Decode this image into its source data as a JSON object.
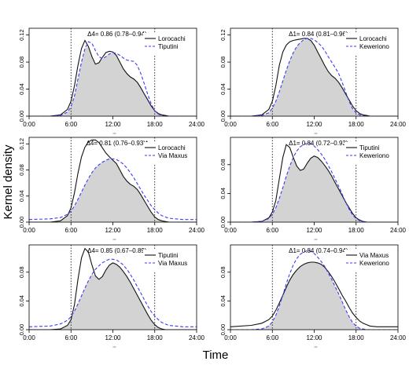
{
  "figure": {
    "ylabel": "Kernel density",
    "xlabel": "Time"
  },
  "chart_data": [
    {
      "type": "area",
      "annotation": "Δ4= 0.86 (0.78–0.94)",
      "legend_position": "top-right",
      "x_ticks": [
        "0:00",
        "6:00",
        "12:00",
        "18:00",
        "24:00"
      ],
      "y_ticks": [
        "0.00",
        "0.04",
        "0.08",
        "0.12"
      ],
      "xlim": [
        0,
        24
      ],
      "ylim": [
        0,
        0.13
      ],
      "dotted_vlines": [
        6,
        18
      ],
      "series": [
        {
          "name": "Lorocachi",
          "style": "solid",
          "x": [
            0,
            3,
            4.5,
            5.5,
            6,
            6.5,
            7,
            7.5,
            8,
            8.5,
            9,
            9.5,
            10,
            10.5,
            11,
            11.5,
            12,
            12.5,
            13,
            13.5,
            14,
            14.5,
            15,
            15.5,
            16,
            16.5,
            17,
            17.5,
            18,
            18.5,
            19,
            19.5,
            20,
            21,
            22,
            24
          ],
          "y": [
            0,
            0,
            0.002,
            0.01,
            0.022,
            0.045,
            0.075,
            0.1,
            0.112,
            0.103,
            0.088,
            0.077,
            0.079,
            0.087,
            0.094,
            0.096,
            0.095,
            0.09,
            0.08,
            0.07,
            0.063,
            0.058,
            0.055,
            0.05,
            0.042,
            0.033,
            0.024,
            0.015,
            0.008,
            0.004,
            0.002,
            0.001,
            0,
            0,
            0,
            0
          ]
        },
        {
          "name": "Tiputini",
          "style": "dashed",
          "x": [
            0,
            3,
            4.5,
            5.5,
            6,
            6.5,
            7,
            7.5,
            8,
            8.5,
            9,
            9.5,
            10,
            10.5,
            11,
            11.5,
            12,
            12.5,
            13,
            13.5,
            14,
            14.5,
            15,
            15.5,
            16,
            16.5,
            17,
            17.5,
            18,
            18.5,
            19,
            19.5,
            20,
            21,
            22,
            24
          ],
          "y": [
            0,
            0,
            0.001,
            0.006,
            0.014,
            0.03,
            0.055,
            0.08,
            0.1,
            0.11,
            0.108,
            0.097,
            0.088,
            0.085,
            0.088,
            0.092,
            0.094,
            0.093,
            0.09,
            0.086,
            0.083,
            0.082,
            0.081,
            0.075,
            0.063,
            0.048,
            0.032,
            0.018,
            0.008,
            0.003,
            0.001,
            0,
            0,
            0,
            0,
            0
          ]
        }
      ]
    },
    {
      "type": "area",
      "annotation": "Δ1= 0.84 (0.81–0.96)",
      "legend_position": "top-right",
      "x_ticks": [
        "0:00",
        "6:00",
        "12:00",
        "18:00",
        "24:00"
      ],
      "y_ticks": [
        "0.00",
        "0.04",
        "0.08",
        "0.12"
      ],
      "xlim": [
        0,
        24
      ],
      "ylim": [
        0,
        0.13
      ],
      "dotted_vlines": [
        6,
        18
      ],
      "series": [
        {
          "name": "Lorocachi",
          "style": "solid",
          "x": [
            0,
            3,
            4.5,
            5.5,
            6,
            6.5,
            7,
            7.5,
            8,
            8.5,
            9,
            9.5,
            10,
            10.5,
            11,
            11.5,
            12,
            12.5,
            13,
            13.5,
            14,
            14.5,
            15,
            15.5,
            16,
            16.5,
            17,
            17.5,
            18,
            18.5,
            19,
            19.5,
            20,
            21,
            22,
            24
          ],
          "y": [
            0,
            0,
            0.002,
            0.01,
            0.022,
            0.045,
            0.075,
            0.095,
            0.105,
            0.11,
            0.112,
            0.113,
            0.114,
            0.115,
            0.115,
            0.112,
            0.105,
            0.095,
            0.085,
            0.075,
            0.066,
            0.06,
            0.056,
            0.05,
            0.042,
            0.033,
            0.024,
            0.015,
            0.008,
            0.004,
            0.002,
            0.001,
            0,
            0,
            0,
            0
          ]
        },
        {
          "name": "Keweriono",
          "style": "dashed",
          "x": [
            0,
            3,
            4.5,
            5.5,
            6,
            6.5,
            7,
            7.5,
            8,
            8.5,
            9,
            9.5,
            10,
            10.5,
            11,
            11.5,
            12,
            12.5,
            13,
            13.5,
            14,
            14.5,
            15,
            15.5,
            16,
            16.5,
            17,
            17.5,
            18,
            18.5,
            19,
            19.5,
            20,
            21,
            22,
            24
          ],
          "y": [
            0,
            0,
            0.001,
            0.005,
            0.012,
            0.022,
            0.036,
            0.052,
            0.068,
            0.082,
            0.094,
            0.103,
            0.109,
            0.113,
            0.115,
            0.115,
            0.113,
            0.109,
            0.104,
            0.097,
            0.088,
            0.08,
            0.072,
            0.063,
            0.05,
            0.036,
            0.022,
            0.011,
            0.005,
            0.002,
            0.001,
            0,
            0,
            0,
            0,
            0
          ]
        }
      ]
    },
    {
      "type": "area",
      "annotation": "Δ4= 0.81 (0.76–0.93)*",
      "legend_position": "top-right",
      "x_ticks": [
        "0:00",
        "6:00",
        "12:00",
        "18:00",
        "24:00"
      ],
      "y_ticks": [
        "0.00",
        "0.04",
        "0.08",
        "0.12"
      ],
      "xlim": [
        0,
        24
      ],
      "ylim": [
        0,
        0.13
      ],
      "dotted_vlines": [
        6,
        18
      ],
      "series": [
        {
          "name": "Lorocachi",
          "style": "solid",
          "x": [
            0,
            3,
            4.5,
            5.5,
            6,
            6.5,
            7,
            7.5,
            8,
            8.5,
            9,
            9.5,
            10,
            10.5,
            11,
            11.5,
            12,
            12.5,
            13,
            13.5,
            14,
            14.5,
            15,
            15.5,
            16,
            16.5,
            17,
            17.5,
            18,
            18.5,
            19,
            19.5,
            20,
            21,
            22,
            24
          ],
          "y": [
            0,
            0,
            0.002,
            0.01,
            0.022,
            0.045,
            0.075,
            0.1,
            0.115,
            0.123,
            0.126,
            0.126,
            0.122,
            0.114,
            0.106,
            0.1,
            0.095,
            0.09,
            0.08,
            0.07,
            0.063,
            0.058,
            0.055,
            0.05,
            0.042,
            0.033,
            0.024,
            0.015,
            0.008,
            0.004,
            0.002,
            0.001,
            0,
            0,
            0,
            0
          ]
        },
        {
          "name": "Via Maxus",
          "style": "dashed",
          "x": [
            0,
            3,
            4.5,
            5.5,
            6,
            6.5,
            7,
            7.5,
            8,
            8.5,
            9,
            9.5,
            10,
            10.5,
            11,
            11.5,
            12,
            12.5,
            13,
            13.5,
            14,
            14.5,
            15,
            15.5,
            16,
            16.5,
            17,
            17.5,
            18,
            18.5,
            19,
            19.5,
            20,
            21,
            22,
            24
          ],
          "y": [
            0.004,
            0.005,
            0.007,
            0.012,
            0.017,
            0.025,
            0.035,
            0.046,
            0.057,
            0.067,
            0.076,
            0.083,
            0.088,
            0.092,
            0.095,
            0.097,
            0.097,
            0.096,
            0.093,
            0.089,
            0.083,
            0.076,
            0.068,
            0.059,
            0.05,
            0.041,
            0.033,
            0.025,
            0.019,
            0.014,
            0.01,
            0.008,
            0.006,
            0.005,
            0.004,
            0.004
          ]
        }
      ]
    },
    {
      "type": "area",
      "annotation": "Δ1= 0.84 (0.72–0.93)",
      "legend_position": "top-right",
      "x_ticks": [
        "0:00",
        "6:00",
        "12:00",
        "18:00",
        "24:00"
      ],
      "y_ticks": [
        "0.00",
        "0.04",
        "0.08"
      ],
      "xlim": [
        0,
        24
      ],
      "ylim": [
        0,
        0.118
      ],
      "dotted_vlines": [
        6,
        18
      ],
      "series": [
        {
          "name": "Tiputini",
          "style": "solid",
          "x": [
            0,
            3,
            4.5,
            5.5,
            6,
            6.5,
            7,
            7.5,
            8,
            8.5,
            9,
            9.5,
            10,
            10.5,
            11,
            11.5,
            12,
            12.5,
            13,
            13.5,
            14,
            14.5,
            15,
            15.5,
            16,
            16.5,
            17,
            17.5,
            18,
            18.5,
            19,
            19.5,
            20,
            21,
            22,
            24
          ],
          "y": [
            0,
            0,
            0.001,
            0.006,
            0.014,
            0.03,
            0.06,
            0.09,
            0.108,
            0.104,
            0.09,
            0.078,
            0.072,
            0.074,
            0.082,
            0.089,
            0.092,
            0.09,
            0.085,
            0.079,
            0.072,
            0.064,
            0.055,
            0.046,
            0.037,
            0.028,
            0.02,
            0.012,
            0.006,
            0.003,
            0.001,
            0,
            0,
            0,
            0,
            0
          ]
        },
        {
          "name": "Keweriono",
          "style": "dashed",
          "x": [
            0,
            3,
            4.5,
            5.5,
            6,
            6.5,
            7,
            7.5,
            8,
            8.5,
            9,
            9.5,
            10,
            10.5,
            11,
            11.5,
            12,
            12.5,
            13,
            13.5,
            14,
            14.5,
            15,
            15.5,
            16,
            16.5,
            17,
            17.5,
            18,
            18.5,
            19,
            19.5,
            20,
            21,
            22,
            24
          ],
          "y": [
            0,
            0,
            0.001,
            0.005,
            0.011,
            0.02,
            0.033,
            0.048,
            0.064,
            0.078,
            0.09,
            0.099,
            0.105,
            0.108,
            0.11,
            0.109,
            0.106,
            0.101,
            0.095,
            0.088,
            0.079,
            0.07,
            0.06,
            0.05,
            0.039,
            0.028,
            0.018,
            0.01,
            0.005,
            0.002,
            0.001,
            0,
            0,
            0,
            0,
            0
          ]
        }
      ]
    },
    {
      "type": "area",
      "annotation": "Δ4= 0.85 (0.67–0.89)",
      "legend_position": "top-right",
      "x_ticks": [
        "0:00",
        "6:00",
        "12:00",
        "18:00",
        "24:00"
      ],
      "y_ticks": [
        "0.00",
        "0.04",
        "0.08"
      ],
      "xlim": [
        0,
        24
      ],
      "ylim": [
        0,
        0.118
      ],
      "dotted_vlines": [
        6,
        18
      ],
      "series": [
        {
          "name": "Tiputini",
          "style": "solid",
          "x": [
            0,
            3,
            4.5,
            5.5,
            6,
            6.5,
            7,
            7.5,
            8,
            8.5,
            9,
            9.5,
            10,
            10.5,
            11,
            11.5,
            12,
            12.5,
            13,
            13.5,
            14,
            14.5,
            15,
            15.5,
            16,
            16.5,
            17,
            17.5,
            18,
            18.5,
            19,
            19.5,
            20,
            21,
            22,
            24
          ],
          "y": [
            0,
            0,
            0.001,
            0.006,
            0.014,
            0.035,
            0.07,
            0.1,
            0.113,
            0.108,
            0.09,
            0.075,
            0.07,
            0.074,
            0.083,
            0.09,
            0.093,
            0.091,
            0.087,
            0.081,
            0.074,
            0.066,
            0.057,
            0.048,
            0.039,
            0.03,
            0.021,
            0.013,
            0.007,
            0.003,
            0.001,
            0,
            0,
            0,
            0,
            0
          ]
        },
        {
          "name": "Via Maxus",
          "style": "dashed",
          "x": [
            0,
            3,
            4.5,
            5.5,
            6,
            6.5,
            7,
            7.5,
            8,
            8.5,
            9,
            9.5,
            10,
            10.5,
            11,
            11.5,
            12,
            12.5,
            13,
            13.5,
            14,
            14.5,
            15,
            15.5,
            16,
            16.5,
            17,
            17.5,
            18,
            18.5,
            19,
            19.5,
            20,
            21,
            22,
            24
          ],
          "y": [
            0.004,
            0.005,
            0.008,
            0.013,
            0.018,
            0.026,
            0.036,
            0.047,
            0.058,
            0.068,
            0.077,
            0.084,
            0.089,
            0.093,
            0.096,
            0.098,
            0.098,
            0.097,
            0.094,
            0.09,
            0.084,
            0.077,
            0.069,
            0.06,
            0.051,
            0.042,
            0.033,
            0.025,
            0.019,
            0.014,
            0.01,
            0.008,
            0.006,
            0.005,
            0.004,
            0.004
          ]
        }
      ]
    },
    {
      "type": "area",
      "annotation": "Δ1= 0.84 (0.74–0.94)",
      "legend_position": "top-right",
      "x_ticks": [
        "0:00",
        "6:00",
        "12:00",
        "18:00",
        "24:00"
      ],
      "y_ticks": [
        "0.00",
        "0.04",
        "0.08"
      ],
      "xlim": [
        0,
        24
      ],
      "ylim": [
        0,
        0.118
      ],
      "dotted_vlines": [
        6,
        18
      ],
      "series": [
        {
          "name": "Via Maxus",
          "style": "solid",
          "x": [
            0,
            3,
            4.5,
            5.5,
            6,
            6.5,
            7,
            7.5,
            8,
            8.5,
            9,
            9.5,
            10,
            10.5,
            11,
            11.5,
            12,
            12.5,
            13,
            13.5,
            14,
            14.5,
            15,
            15.5,
            16,
            16.5,
            17,
            17.5,
            18,
            18.5,
            19,
            19.5,
            20,
            21,
            22,
            24
          ],
          "y": [
            0.004,
            0.006,
            0.009,
            0.014,
            0.019,
            0.027,
            0.037,
            0.048,
            0.059,
            0.069,
            0.077,
            0.083,
            0.088,
            0.091,
            0.093,
            0.094,
            0.094,
            0.093,
            0.091,
            0.087,
            0.081,
            0.074,
            0.066,
            0.057,
            0.048,
            0.04,
            0.031,
            0.023,
            0.017,
            0.012,
            0.009,
            0.007,
            0.005,
            0.004,
            0.004,
            0.004
          ]
        },
        {
          "name": "Keweriono",
          "style": "dashed",
          "x": [
            0,
            3,
            4.5,
            5.5,
            6,
            6.5,
            7,
            7.5,
            8,
            8.5,
            9,
            9.5,
            10,
            10.5,
            11,
            11.5,
            12,
            12.5,
            13,
            13.5,
            14,
            14.5,
            15,
            15.5,
            16,
            16.5,
            17,
            17.5,
            18,
            18.5,
            19,
            19.5,
            20,
            21,
            22,
            24
          ],
          "y": [
            0,
            0,
            0.001,
            0.005,
            0.011,
            0.02,
            0.033,
            0.048,
            0.064,
            0.078,
            0.09,
            0.099,
            0.105,
            0.108,
            0.11,
            0.109,
            0.106,
            0.101,
            0.095,
            0.088,
            0.079,
            0.07,
            0.06,
            0.05,
            0.039,
            0.028,
            0.018,
            0.01,
            0.005,
            0.002,
            0.001,
            0,
            0,
            0,
            0,
            0
          ]
        }
      ]
    }
  ]
}
